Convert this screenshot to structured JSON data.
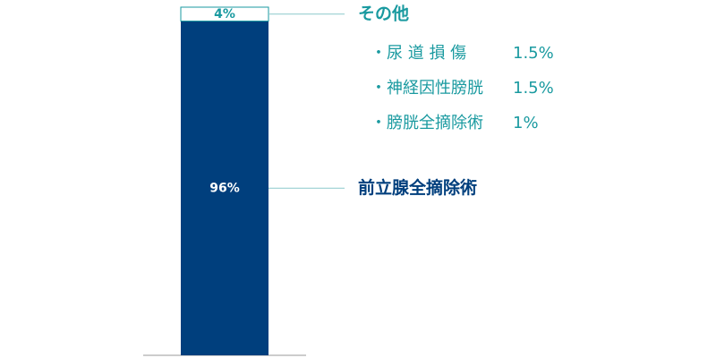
{
  "chart_data": {
    "type": "stacked-bar",
    "ylim": [
      0,
      100
    ],
    "series": [
      {
        "name": "前立腺全摘除術",
        "color": "#003f7d",
        "label_color": "#003f7d",
        "values": [
          96
        ],
        "value_labels": [
          "96%"
        ]
      },
      {
        "name": "その他",
        "color": "#ffffff",
        "label_color": "#1a9aa0",
        "values": [
          4
        ],
        "value_labels": [
          "4%"
        ],
        "details": [
          {
            "name": "・尿 道 損 傷",
            "value": 1.5,
            "value_label": "1.5%"
          },
          {
            "name": "・神経因性膀胱",
            "value": 1.5,
            "value_label": "1.5%"
          },
          {
            "name": "・膀胱全摘除術",
            "value": 1,
            "value_label": "1%"
          }
        ]
      }
    ]
  }
}
